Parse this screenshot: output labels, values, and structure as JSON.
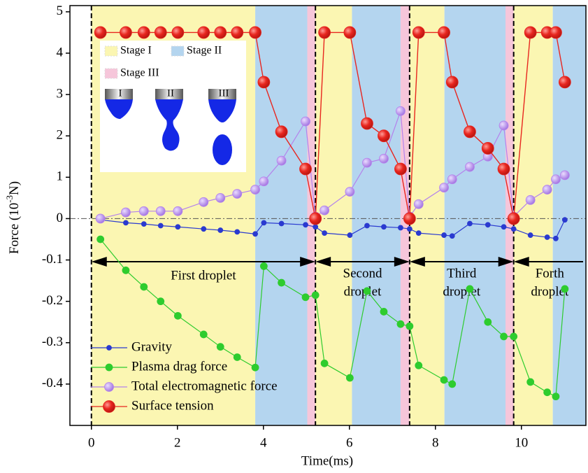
{
  "chart_data": {
    "type": "line",
    "x_label": "Time(ms)",
    "y_label_parts": [
      "Force (10",
      "-3",
      "N)"
    ],
    "xlim": [
      -0.5,
      11.5
    ],
    "xticks": [
      0,
      2,
      4,
      6,
      8,
      10
    ],
    "ylim": [
      -0.5,
      5.15
    ],
    "yticks": [
      5,
      4,
      3,
      2,
      1,
      0,
      -0.1,
      -0.2,
      -0.3,
      -0.4
    ],
    "zero_line": true,
    "x": [
      0.21,
      0.8,
      1.22,
      1.61,
      2.01,
      2.61,
      3.0,
      3.39,
      3.81,
      4.01,
      4.42,
      4.98,
      5.21,
      5.42,
      6.01,
      6.41,
      6.8,
      7.19,
      7.4,
      7.61,
      8.2,
      8.39,
      8.8,
      9.22,
      9.59,
      9.82,
      10.21,
      10.6,
      10.8,
      11.01
    ],
    "series": [
      {
        "name": "Gravity",
        "color": "#2a3ad0",
        "values": [
          -0.003,
          -0.01,
          -0.013,
          -0.017,
          -0.02,
          -0.025,
          -0.028,
          -0.032,
          -0.037,
          -0.01,
          -0.012,
          -0.015,
          -0.02,
          -0.035,
          -0.04,
          -0.017,
          -0.02,
          -0.022,
          -0.025,
          -0.035,
          -0.04,
          -0.042,
          -0.012,
          -0.015,
          -0.02,
          -0.025,
          -0.04,
          -0.045,
          -0.048,
          -0.003
        ]
      },
      {
        "name": "Plasma drag force",
        "color": "#2ecc2e",
        "values": [
          -0.05,
          -0.125,
          -0.165,
          -0.2,
          -0.235,
          -0.28,
          -0.31,
          -0.335,
          -0.36,
          -0.115,
          -0.155,
          -0.19,
          -0.185,
          -0.35,
          -0.385,
          -0.175,
          -0.225,
          -0.255,
          -0.26,
          -0.355,
          -0.39,
          -0.4,
          -0.17,
          -0.25,
          -0.285,
          -0.285,
          -0.395,
          -0.42,
          -0.43,
          -0.17
        ]
      },
      {
        "name": "Total electromagnetic force",
        "color": "#b482ec",
        "values": [
          0,
          0.15,
          0.18,
          0.18,
          0.18,
          0.4,
          0.5,
          0.6,
          0.7,
          0.9,
          1.4,
          2.35,
          0.05,
          0.2,
          0.65,
          1.35,
          1.45,
          2.6,
          0.05,
          0.35,
          0.75,
          0.95,
          1.25,
          1.5,
          2.25,
          0.05,
          0.45,
          0.7,
          0.95,
          1.05
        ]
      },
      {
        "name": "Surface tension",
        "color": "#e8261f",
        "values": [
          4.5,
          4.5,
          4.5,
          4.5,
          4.5,
          4.5,
          4.5,
          4.5,
          4.5,
          3.3,
          2.1,
          1.2,
          0,
          4.5,
          4.5,
          2.3,
          2.0,
          1.2,
          0,
          4.5,
          4.5,
          3.3,
          2.1,
          1.7,
          1.2,
          0,
          4.5,
          4.5,
          4.5,
          3.3
        ]
      }
    ],
    "stage_colors": {
      "I": "#fbf6b2",
      "II": "#b4d5ef",
      "III": "#f6c6da"
    },
    "stages": [
      {
        "stage": "I",
        "start": 0,
        "end": 3.81
      },
      {
        "stage": "II",
        "start": 3.81,
        "end": 5.02
      },
      {
        "stage": "III",
        "start": 5.02,
        "end": 5.21
      },
      {
        "stage": "I",
        "start": 5.21,
        "end": 6.06
      },
      {
        "stage": "II",
        "start": 6.06,
        "end": 7.19
      },
      {
        "stage": "III",
        "start": 7.19,
        "end": 7.4
      },
      {
        "stage": "I",
        "start": 7.4,
        "end": 8.21
      },
      {
        "stage": "II",
        "start": 8.21,
        "end": 9.63
      },
      {
        "stage": "III",
        "start": 9.63,
        "end": 9.82
      },
      {
        "stage": "I",
        "start": 9.82,
        "end": 10.73
      },
      {
        "stage": "II",
        "start": 10.73,
        "end": 11.5
      }
    ],
    "droplet_boundaries": [
      0,
      5.21,
      7.4,
      9.82
    ],
    "droplets": [
      [
        "First droplet"
      ],
      [
        "Second",
        "droplet"
      ],
      [
        "Third",
        "droplet"
      ],
      [
        "Forth",
        "droplet"
      ]
    ],
    "stage_legend": [
      {
        "stage": "I",
        "label": "Stage I"
      },
      {
        "stage": "II",
        "label": "Stage II"
      },
      {
        "stage": "III",
        "label": "Stage III"
      }
    ],
    "inset_labels": [
      "I",
      "II",
      "III"
    ]
  }
}
